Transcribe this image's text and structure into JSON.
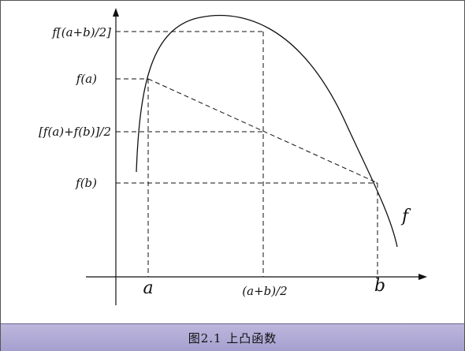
{
  "diagram": {
    "labels": {
      "f_mid": "f[(a+b)/2]",
      "f_a": "f(a)",
      "chord_mid": "[f(a)+f(b)]/2",
      "f_b": "f(b)",
      "curve_name": "f",
      "a": "a",
      "mid": "(a+b)/2",
      "b": "b"
    }
  },
  "caption": {
    "text": "图2.1 上凸函数"
  }
}
